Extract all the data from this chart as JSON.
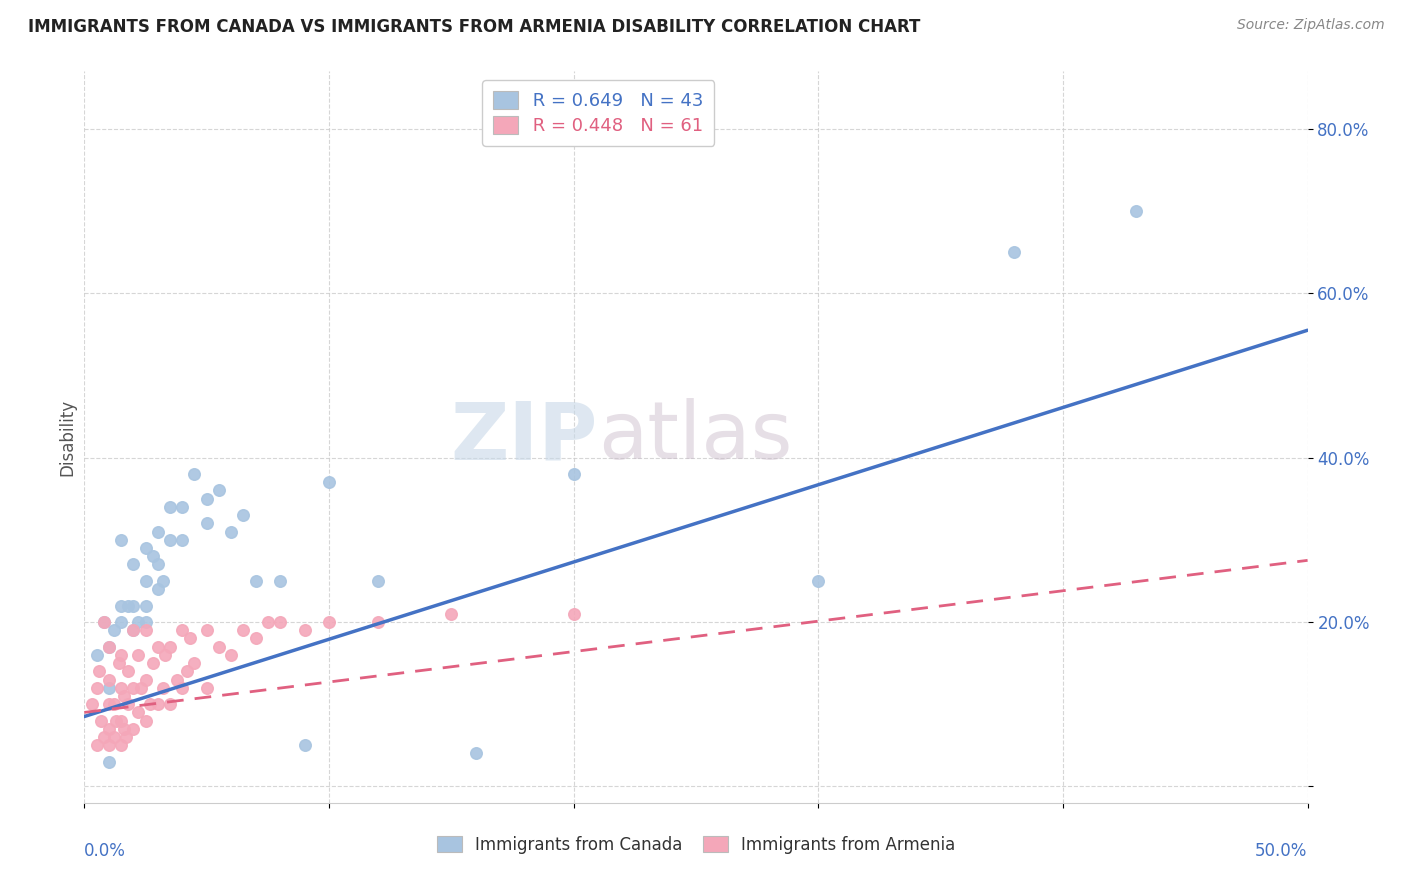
{
  "title": "IMMIGRANTS FROM CANADA VS IMMIGRANTS FROM ARMENIA DISABILITY CORRELATION CHART",
  "source": "Source: ZipAtlas.com",
  "ylabel": "Disability",
  "xlim": [
    0.0,
    0.5
  ],
  "ylim": [
    -0.02,
    0.87
  ],
  "legend_canada_r": "R = 0.649",
  "legend_canada_n": "N = 43",
  "legend_armenia_r": "R = 0.448",
  "legend_armenia_n": "N = 61",
  "canada_color": "#a8c4e0",
  "armenia_color": "#f4a7b9",
  "canada_line_color": "#4472c4",
  "armenia_line_color": "#e06080",
  "watermark_1": "ZIP",
  "watermark_2": "atlas",
  "canada_points_x": [
    0.005,
    0.008,
    0.01,
    0.01,
    0.01,
    0.012,
    0.015,
    0.015,
    0.015,
    0.018,
    0.02,
    0.02,
    0.02,
    0.022,
    0.025,
    0.025,
    0.025,
    0.025,
    0.028,
    0.03,
    0.03,
    0.03,
    0.032,
    0.035,
    0.035,
    0.04,
    0.04,
    0.045,
    0.05,
    0.05,
    0.055,
    0.06,
    0.065,
    0.07,
    0.08,
    0.09,
    0.1,
    0.12,
    0.16,
    0.2,
    0.3,
    0.38,
    0.43
  ],
  "canada_points_y": [
    0.16,
    0.2,
    0.03,
    0.12,
    0.17,
    0.19,
    0.2,
    0.22,
    0.3,
    0.22,
    0.19,
    0.22,
    0.27,
    0.2,
    0.2,
    0.22,
    0.25,
    0.29,
    0.28,
    0.24,
    0.27,
    0.31,
    0.25,
    0.3,
    0.34,
    0.3,
    0.34,
    0.38,
    0.32,
    0.35,
    0.36,
    0.31,
    0.33,
    0.25,
    0.25,
    0.05,
    0.37,
    0.25,
    0.04,
    0.38,
    0.25,
    0.65,
    0.7
  ],
  "armenia_points_x": [
    0.003,
    0.005,
    0.005,
    0.006,
    0.007,
    0.008,
    0.008,
    0.01,
    0.01,
    0.01,
    0.01,
    0.01,
    0.012,
    0.012,
    0.013,
    0.014,
    0.015,
    0.015,
    0.015,
    0.015,
    0.016,
    0.016,
    0.017,
    0.018,
    0.018,
    0.02,
    0.02,
    0.02,
    0.022,
    0.022,
    0.023,
    0.025,
    0.025,
    0.025,
    0.027,
    0.028,
    0.03,
    0.03,
    0.032,
    0.033,
    0.035,
    0.035,
    0.038,
    0.04,
    0.04,
    0.042,
    0.043,
    0.045,
    0.05,
    0.05,
    0.055,
    0.06,
    0.065,
    0.07,
    0.075,
    0.08,
    0.09,
    0.1,
    0.12,
    0.15,
    0.2
  ],
  "armenia_points_y": [
    0.1,
    0.05,
    0.12,
    0.14,
    0.08,
    0.06,
    0.2,
    0.05,
    0.07,
    0.1,
    0.13,
    0.17,
    0.06,
    0.1,
    0.08,
    0.15,
    0.05,
    0.08,
    0.12,
    0.16,
    0.07,
    0.11,
    0.06,
    0.1,
    0.14,
    0.07,
    0.12,
    0.19,
    0.09,
    0.16,
    0.12,
    0.08,
    0.13,
    0.19,
    0.1,
    0.15,
    0.1,
    0.17,
    0.12,
    0.16,
    0.1,
    0.17,
    0.13,
    0.12,
    0.19,
    0.14,
    0.18,
    0.15,
    0.12,
    0.19,
    0.17,
    0.16,
    0.19,
    0.18,
    0.2,
    0.2,
    0.19,
    0.2,
    0.2,
    0.21,
    0.21
  ],
  "canada_line_x": [
    0.0,
    0.5
  ],
  "canada_line_y": [
    0.085,
    0.555
  ],
  "armenia_line_x": [
    0.0,
    0.5
  ],
  "armenia_line_y": [
    0.09,
    0.275
  ]
}
